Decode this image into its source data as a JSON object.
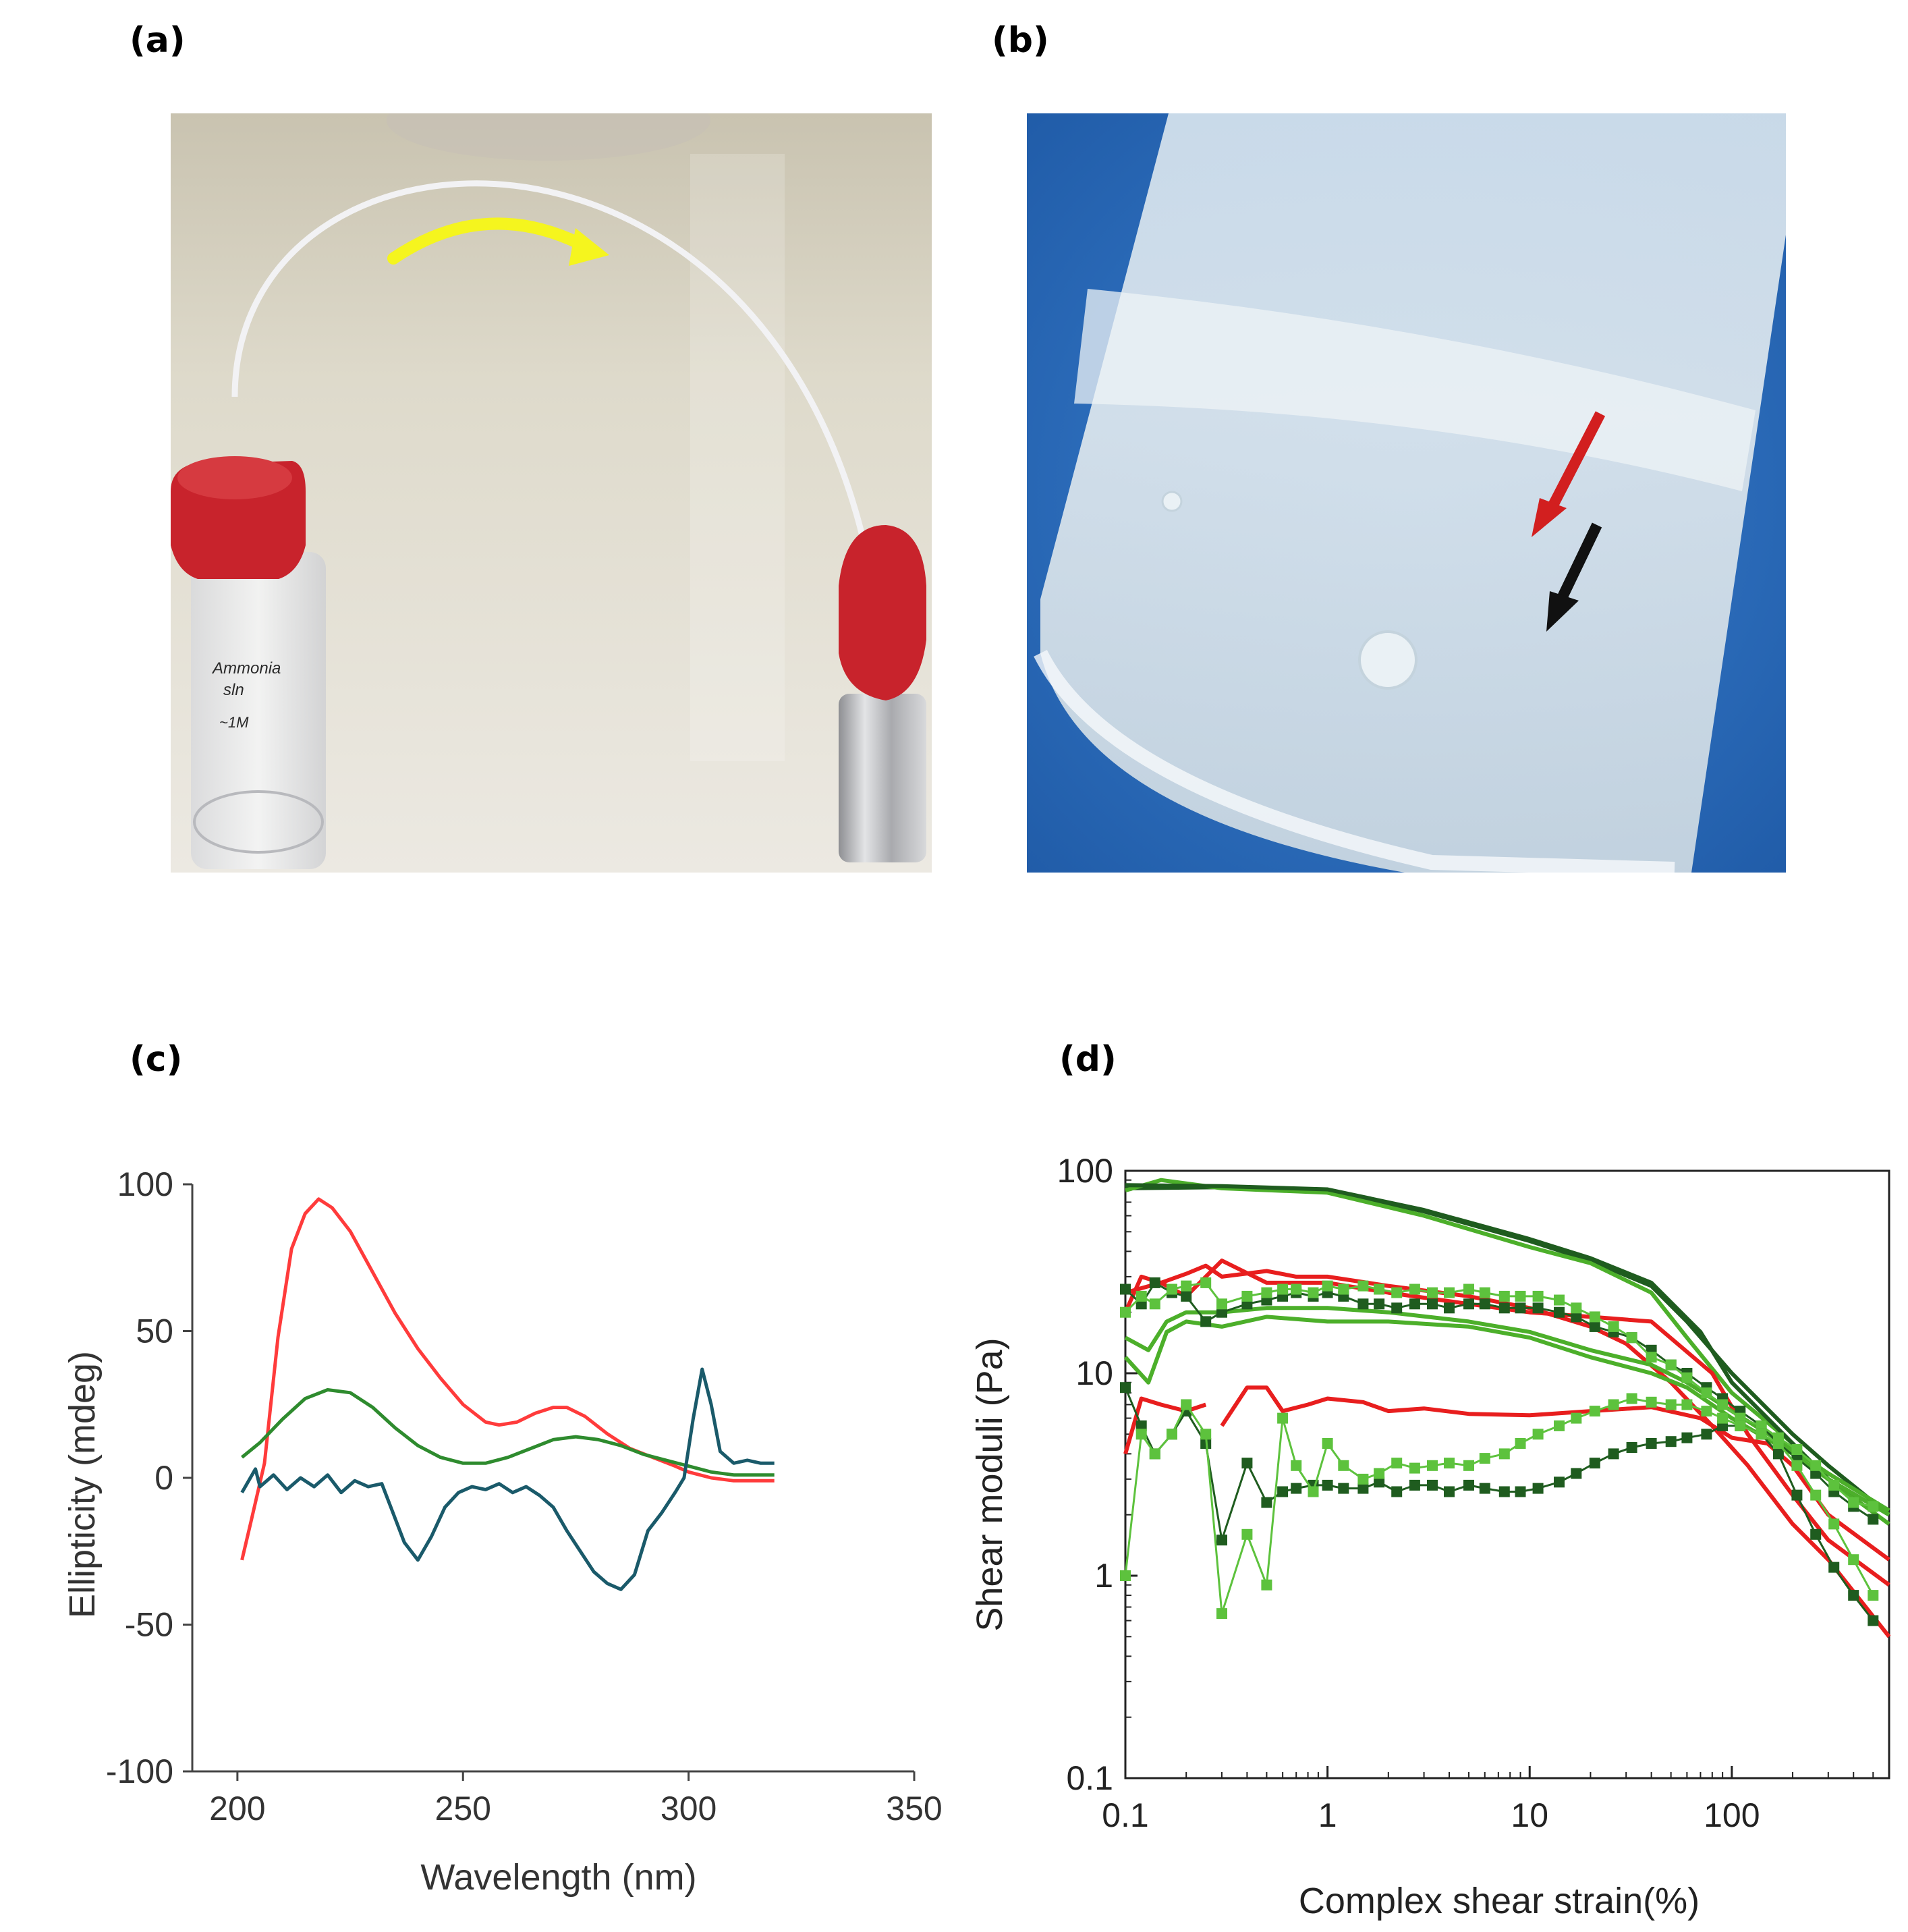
{
  "panels": {
    "a": {
      "label": "(a)"
    },
    "b": {
      "label": "(b)"
    },
    "c": {
      "label": "(c)"
    },
    "d": {
      "label": "(d)"
    }
  },
  "photo_a": {
    "vial_label_lines": [
      "Ammonia",
      "sln",
      "~1M"
    ],
    "colors": {
      "cap": "#c8232c",
      "arrow": "#f5f51e",
      "tube": "#e8e8ea",
      "bench": "#dcd8c8"
    }
  },
  "photo_b": {
    "colors": {
      "background": "#2f6fc2",
      "red_arrow": "#d21f1f",
      "black_arrow": "#111111"
    }
  },
  "chart_data": [
    {
      "type": "line",
      "panel": "c",
      "xlabel": "Wavelength (nm)",
      "ylabel": "Ellipticity (mdeg)",
      "xlim": [
        190,
        350
      ],
      "ylim": [
        -100,
        100
      ],
      "xticks": [
        200,
        250,
        300,
        350
      ],
      "yticks": [
        -100,
        -50,
        0,
        50,
        100
      ],
      "series": [
        {
          "name": "red",
          "color": "#ff3b3b",
          "x": [
            201,
            203,
            206,
            209,
            212,
            215,
            218,
            221,
            225,
            230,
            235,
            240,
            245,
            250,
            255,
            258,
            262,
            266,
            270,
            273,
            277,
            282,
            287,
            292,
            297,
            300,
            305,
            310,
            315,
            319
          ],
          "y": [
            -28,
            -15,
            5,
            48,
            78,
            90,
            95,
            92,
            84,
            70,
            56,
            44,
            34,
            25,
            19,
            18,
            19,
            22,
            24,
            24,
            21,
            15,
            10,
            7,
            4,
            2,
            0,
            -1,
            -1,
            -1
          ]
        },
        {
          "name": "green",
          "color": "#2e8b2e",
          "x": [
            201,
            205,
            210,
            215,
            220,
            225,
            230,
            235,
            240,
            245,
            250,
            255,
            260,
            265,
            270,
            275,
            280,
            285,
            290,
            295,
            300,
            305,
            310,
            315,
            319
          ],
          "y": [
            7,
            12,
            20,
            27,
            30,
            29,
            24,
            17,
            11,
            7,
            5,
            5,
            7,
            10,
            13,
            14,
            13,
            11,
            8,
            6,
            4,
            2,
            1,
            1,
            1
          ]
        },
        {
          "name": "teal",
          "color": "#1a5a6a",
          "x": [
            201,
            204,
            205,
            208,
            211,
            214,
            217,
            220,
            223,
            226,
            229,
            232,
            234,
            237,
            240,
            243,
            246,
            249,
            252,
            255,
            258,
            261,
            264,
            267,
            270,
            273,
            276,
            279,
            282,
            285,
            288,
            291,
            294,
            297,
            299,
            301,
            303,
            305,
            307,
            310,
            313,
            316,
            319
          ],
          "y": [
            -5,
            3,
            -3,
            1,
            -4,
            0,
            -3,
            1,
            -5,
            -1,
            -3,
            -2,
            -10,
            -22,
            -28,
            -20,
            -10,
            -5,
            -3,
            -4,
            -2,
            -5,
            -3,
            -6,
            -10,
            -18,
            -25,
            -32,
            -36,
            -38,
            -33,
            -18,
            -12,
            -5,
            0,
            20,
            37,
            25,
            9,
            5,
            6,
            5,
            5
          ]
        }
      ]
    },
    {
      "type": "line",
      "panel": "d",
      "xscale": "log",
      "yscale": "log",
      "xlabel": "Complex shear strain(%)",
      "ylabel": "Shear moduli (Pa)",
      "xlim": [
        0.1,
        600
      ],
      "ylim": [
        0.1,
        100
      ],
      "xtick_labels": [
        "0.1",
        "1",
        "10",
        "100"
      ],
      "ytick_labels": [
        "0.1",
        "1",
        "10",
        "100"
      ],
      "xticks": [
        0.1,
        1,
        10,
        100
      ],
      "yticks": [
        0.1,
        1,
        10,
        100
      ],
      "series": [
        {
          "name": "G' 1",
          "color": "#1f5c1f",
          "marker": "none",
          "x": [
            0.1,
            0.3,
            1,
            3,
            10,
            20,
            40,
            60,
            100,
            200,
            300,
            600
          ],
          "y": [
            82,
            83,
            80,
            63,
            45,
            36,
            27,
            18,
            10,
            5,
            3.5,
            2
          ]
        },
        {
          "name": "G' 2",
          "color": "#4caf2a",
          "marker": "none",
          "x": [
            0.1,
            0.15,
            0.3,
            1,
            3,
            10,
            20,
            40,
            60,
            100,
            200,
            300,
            600
          ],
          "y": [
            80,
            90,
            82,
            78,
            60,
            42,
            35,
            25,
            15,
            8,
            4.5,
            3,
            1.8
          ]
        },
        {
          "name": "G' 3",
          "color": "#1f5c1f",
          "marker": "none",
          "x": [
            0.1,
            0.3,
            1,
            3,
            10,
            20,
            40,
            70,
            100,
            200,
            300,
            600
          ],
          "y": [
            85,
            84,
            81,
            64,
            46,
            37,
            28,
            16,
            9,
            4.5,
            3,
            2
          ]
        },
        {
          "name": "red G' 1",
          "color": "#e81e1e",
          "marker": "none",
          "x": [
            0.1,
            0.12,
            0.15,
            0.2,
            0.25,
            0.3,
            0.5,
            0.7,
            1,
            2,
            5,
            10,
            20,
            30,
            50,
            80,
            120,
            200,
            300,
            600
          ],
          "y": [
            20,
            30,
            28,
            31,
            34,
            30,
            32,
            30,
            30,
            27,
            24,
            21,
            17,
            14,
            9,
            5.5,
            3.5,
            1.8,
            1.2,
            0.5
          ]
        },
        {
          "name": "red G' 2",
          "color": "#e81e1e",
          "marker": "none",
          "x": [
            0.1,
            0.15,
            0.2,
            0.25,
            0.3,
            0.5,
            1,
            2,
            5,
            10,
            20,
            40,
            80,
            120,
            200,
            300,
            600
          ],
          "y": [
            25,
            28,
            24,
            30,
            36,
            28,
            28,
            25,
            22,
            20,
            19,
            18,
            10,
            5,
            2.5,
            1.5,
            0.9
          ]
        },
        {
          "name": "red G'' 1",
          "color": "#e81e1e",
          "marker": "none",
          "x": [
            0.1,
            0.12,
            0.15,
            0.2,
            0.25
          ],
          "y": [
            4,
            7.5,
            7,
            6.5,
            7
          ]
        },
        {
          "name": "red G'' 2",
          "color": "#e81e1e",
          "marker": "none",
          "x": [
            0.3,
            0.4,
            0.5,
            0.6,
            0.8,
            1,
            1.5,
            2,
            3,
            5,
            10,
            20,
            40,
            70,
            100,
            150,
            200,
            300,
            600
          ],
          "y": [
            5.5,
            8.5,
            8.5,
            6.5,
            7,
            7.5,
            7.2,
            6.5,
            6.7,
            6.3,
            6.2,
            6.5,
            6.8,
            6,
            4.8,
            4.5,
            3.5,
            2,
            1.2
          ]
        },
        {
          "name": "G'' line 1",
          "color": "#4caf2a",
          "marker": "none",
          "x": [
            0.1,
            0.13,
            0.16,
            0.2,
            0.3,
            0.5,
            1,
            2,
            5,
            10,
            20,
            40,
            60,
            100,
            200,
            300,
            600
          ],
          "y": [
            12,
            9,
            16,
            18,
            17,
            19,
            18,
            18,
            17,
            15,
            12,
            10,
            8.5,
            6,
            4,
            3,
            2
          ]
        },
        {
          "name": "G'' line 2",
          "color": "#4caf2a",
          "marker": "none",
          "x": [
            0.1,
            0.13,
            0.16,
            0.2,
            0.3,
            0.5,
            1,
            2,
            5,
            10,
            20,
            40,
            60,
            100,
            200,
            300,
            600
          ],
          "y": [
            15,
            13,
            18,
            20,
            20,
            21,
            21,
            20,
            18,
            16,
            13,
            11,
            9,
            6.5,
            4.2,
            3.2,
            2.1
          ]
        },
        {
          "name": "G' squares dark",
          "color": "#1f5c1f",
          "marker": "square",
          "x": [
            0.1,
            0.12,
            0.14,
            0.17,
            0.2,
            0.25,
            0.3,
            0.4,
            0.5,
            0.6,
            0.7,
            0.85,
            1,
            1.2,
            1.5,
            1.8,
            2.2,
            2.7,
            3.3,
            4,
            5,
            6,
            7.5,
            9,
            11,
            14,
            17,
            21,
            26,
            32,
            40,
            50,
            60,
            75,
            90,
            110,
            140,
            170,
            210,
            260,
            320,
            400,
            500
          ],
          "y": [
            26,
            22,
            28,
            25,
            24,
            18,
            20,
            22,
            23,
            24,
            25,
            24,
            25,
            24,
            22,
            22,
            21,
            22,
            22,
            21,
            22,
            22,
            21,
            21,
            21,
            20,
            19,
            17,
            16,
            15,
            13,
            11,
            10,
            8.5,
            7.5,
            6.5,
            5.5,
            4.5,
            3.8,
            3.2,
            2.6,
            2.2,
            1.9
          ]
        },
        {
          "name": "G' squares light",
          "color": "#5dc23d",
          "marker": "square",
          "x": [
            0.1,
            0.12,
            0.14,
            0.17,
            0.2,
            0.25,
            0.3,
            0.4,
            0.5,
            0.6,
            0.7,
            0.85,
            1,
            1.2,
            1.5,
            1.8,
            2.2,
            2.7,
            3.3,
            4,
            5,
            6,
            7.5,
            9,
            11,
            14,
            17,
            21,
            26,
            32,
            40,
            50,
            60,
            75,
            90,
            110,
            140,
            170,
            210,
            260,
            320,
            400,
            500
          ],
          "y": [
            20,
            24,
            22,
            26,
            27,
            28,
            22,
            24,
            25,
            26,
            26,
            25,
            27,
            26,
            27,
            26,
            25,
            26,
            25,
            25,
            26,
            25,
            24,
            24,
            24,
            23,
            21,
            19,
            17,
            15,
            12,
            11,
            9.5,
            8,
            7,
            6,
            5.5,
            4.8,
            4.2,
            3.5,
            2.8,
            2.3,
            2.2
          ]
        },
        {
          "name": "G'' squares dark",
          "color": "#1f5c1f",
          "marker": "square",
          "x": [
            0.1,
            0.12,
            0.14,
            0.17,
            0.2,
            0.25,
            0.3,
            0.4,
            0.5,
            0.6,
            0.7,
            0.85,
            1,
            1.2,
            1.5,
            1.8,
            2.2,
            2.7,
            3.3,
            4,
            5,
            6,
            7.5,
            9,
            11,
            14,
            17,
            21,
            26,
            32,
            40,
            50,
            60,
            75,
            90,
            110,
            140,
            170,
            210,
            260,
            320,
            400,
            500
          ],
          "y": [
            8.5,
            5.5,
            4,
            5,
            6.5,
            4.5,
            1.5,
            3.6,
            2.3,
            2.6,
            2.7,
            2.8,
            2.8,
            2.7,
            2.7,
            2.9,
            2.6,
            2.8,
            2.8,
            2.6,
            2.8,
            2.7,
            2.6,
            2.6,
            2.7,
            2.9,
            3.2,
            3.6,
            4.0,
            4.3,
            4.5,
            4.6,
            4.8,
            5.0,
            5.5,
            5.5,
            5.0,
            4.0,
            2.5,
            1.6,
            1.1,
            0.8,
            0.6
          ]
        },
        {
          "name": "G'' squares light",
          "color": "#5dc23d",
          "marker": "square",
          "x": [
            0.1,
            0.12,
            0.14,
            0.17,
            0.2,
            0.25,
            0.3,
            0.4,
            0.5,
            0.6,
            0.7,
            0.85,
            1,
            1.2,
            1.5,
            1.8,
            2.2,
            2.7,
            3.3,
            4,
            5,
            6,
            7.5,
            9,
            11,
            14,
            17,
            21,
            26,
            32,
            40,
            50,
            60,
            75,
            90,
            110,
            140,
            170,
            210,
            260,
            320,
            400,
            500
          ],
          "y": [
            1,
            5,
            4,
            5,
            7,
            5,
            0.65,
            1.6,
            0.9,
            6,
            3.5,
            2.6,
            4.5,
            3.5,
            3,
            3.2,
            3.6,
            3.4,
            3.5,
            3.6,
            3.5,
            3.8,
            4,
            4.5,
            5,
            5.5,
            6,
            6.5,
            7,
            7.5,
            7.2,
            7,
            7,
            6.5,
            6,
            5.5,
            5,
            4.5,
            3.5,
            2.5,
            1.8,
            1.2,
            0.8
          ]
        }
      ]
    }
  ]
}
